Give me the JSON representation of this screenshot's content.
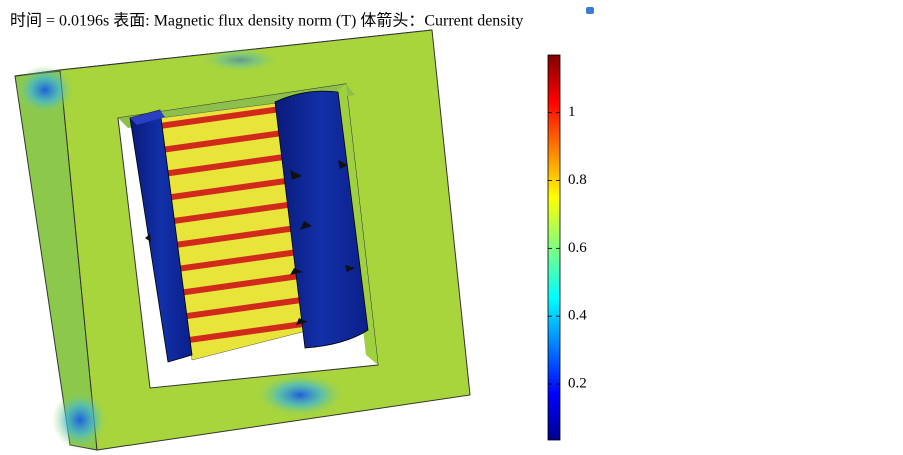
{
  "title": "时间 = 0.0196s 表面: Magnetic flux density norm (T) 体箭头：Current density",
  "colorbar": {
    "range": [
      0.035,
      1.17
    ],
    "ticks": [
      0.2,
      0.4,
      0.6,
      0.8,
      1
    ]
  }
}
